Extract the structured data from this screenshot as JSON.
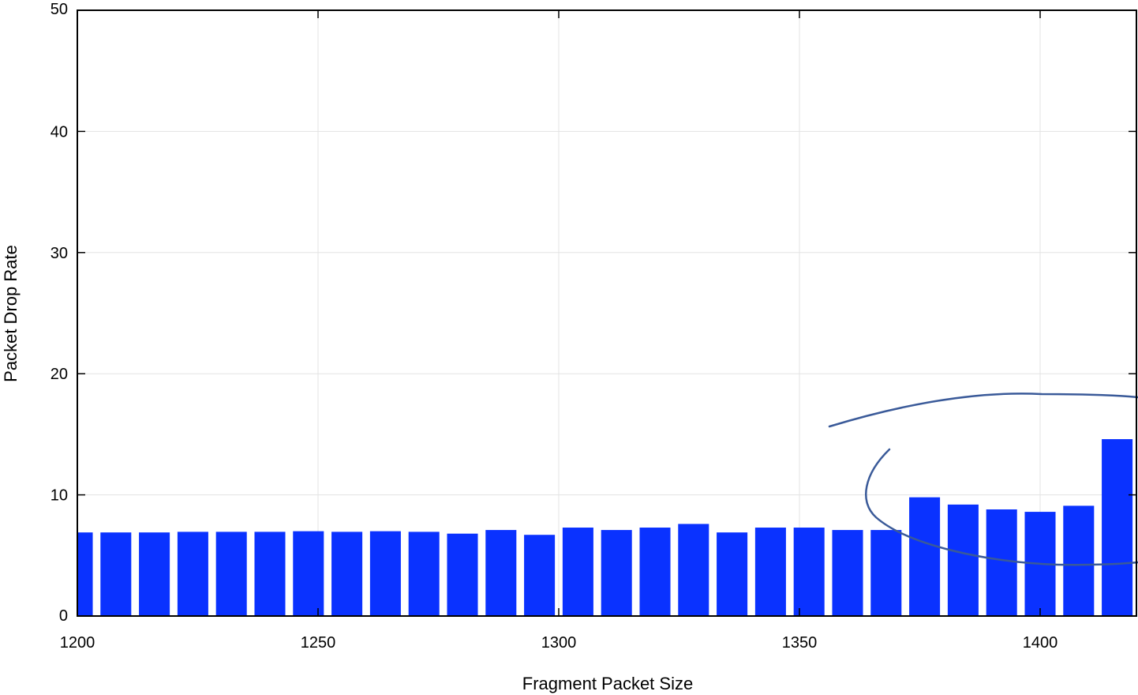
{
  "chart_data": {
    "type": "bar",
    "title": "",
    "xlabel": "Fragment Packet Size",
    "ylabel": "Packet Drop Rate",
    "xlim": [
      1200,
      1420
    ],
    "ylim": [
      0,
      50
    ],
    "xticks": [
      "1200",
      "1250",
      "1300",
      "1350",
      "1400"
    ],
    "yticks": [
      "0",
      "10",
      "20",
      "30",
      "40",
      "50"
    ],
    "grid": true,
    "bar_color": "#0a32ff",
    "annotation_color": "#3a5a99",
    "x": [
      1200,
      1208,
      1216,
      1224,
      1232,
      1240,
      1248,
      1256,
      1264,
      1272,
      1280,
      1288,
      1296,
      1304,
      1312,
      1320,
      1328,
      1336,
      1344,
      1352,
      1360,
      1368,
      1376,
      1384,
      1392,
      1400,
      1408,
      1416
    ],
    "values": [
      6.9,
      6.9,
      6.9,
      6.95,
      6.95,
      6.95,
      7.0,
      6.95,
      7.0,
      6.95,
      6.8,
      7.1,
      6.7,
      7.3,
      7.1,
      7.3,
      7.6,
      6.9,
      7.3,
      7.3,
      7.1,
      7.1,
      9.8,
      9.2,
      8.8,
      8.6,
      9.1,
      14.6
    ]
  }
}
